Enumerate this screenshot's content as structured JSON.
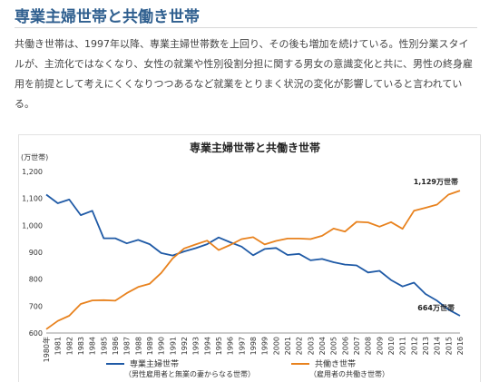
{
  "page": {
    "heading": "専業主婦世帯と共働き世帯",
    "paragraph": "共働き世帯は、1997年以降、専業主婦世帯数を上回り、その後も増加を続けている。性別分業スタイルが、主流化ではなくなり、女性の就業や性別役割分担に関する男女の意識変化と共に、男性の終身雇用を前提として考えにくくなりつつあるなど就業をとりまく状況の変化が影響していると言われている。"
  },
  "chart_data": {
    "type": "line",
    "title": "専業主婦世帯と共働き世帯",
    "y_unit": "(万世帯)",
    "ylim": [
      600,
      1200
    ],
    "yticks": [
      "600",
      "700",
      "800",
      "900",
      "1,000",
      "1,100",
      "1,200"
    ],
    "ytick_values": [
      600,
      700,
      800,
      900,
      1000,
      1100,
      1200
    ],
    "categories": [
      "1980年",
      "1981",
      "1982",
      "1983",
      "1984",
      "1985",
      "1986",
      "1987",
      "1988",
      "1989",
      "1990",
      "1991",
      "1992",
      "1993",
      "1994",
      "1995",
      "1996",
      "1997",
      "1998",
      "1999",
      "2000",
      "2001",
      "2002",
      "2003",
      "2004",
      "2005",
      "2006",
      "2007",
      "2008",
      "2009",
      "2010",
      "2011",
      "2012",
      "2013",
      "2014",
      "2015",
      "2016"
    ],
    "grid": false,
    "legend_position": "bottom",
    "series": [
      {
        "name": "専業主婦世帯",
        "subtitle": "（男性雇用者と無業の妻からなる世帯）",
        "color": "#1f5aa6",
        "values": [
          1114,
          1082,
          1096,
          1038,
          1054,
          952,
          952,
          933,
          946,
          930,
          897,
          888,
          903,
          915,
          930,
          955,
          937,
          921,
          889,
          912,
          916,
          890,
          894,
          870,
          875,
          863,
          854,
          851,
          825,
          831,
          797,
          773,
          787,
          745,
          720,
          687,
          664
        ]
      },
      {
        "name": "共働き世帯",
        "subtitle": "（雇用者の共働き世帯）",
        "color": "#e8821e",
        "values": [
          614,
          645,
          664,
          708,
          721,
          722,
          720,
          748,
          771,
          783,
          823,
          877,
          914,
          929,
          943,
          908,
          927,
          949,
          956,
          929,
          942,
          951,
          951,
          949,
          961,
          988,
          977,
          1013,
          1011,
          995,
          1012,
          987,
          1054,
          1065,
          1077,
          1114,
          1129
        ]
      }
    ],
    "annotations": [
      "1,129万世帯",
      "664万世帯"
    ]
  }
}
